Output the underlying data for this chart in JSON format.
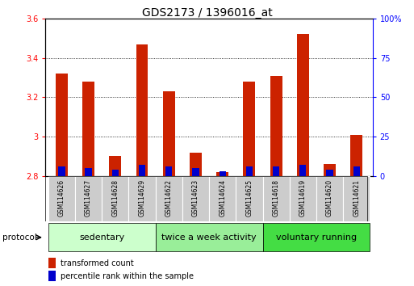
{
  "title": "GDS2173 / 1396016_at",
  "samples": [
    "GSM114626",
    "GSM114627",
    "GSM114628",
    "GSM114629",
    "GSM114622",
    "GSM114623",
    "GSM114624",
    "GSM114625",
    "GSM114618",
    "GSM114619",
    "GSM114620",
    "GSM114621"
  ],
  "transformed_count": [
    3.32,
    3.28,
    2.9,
    3.47,
    3.23,
    2.92,
    2.82,
    3.28,
    3.31,
    3.52,
    2.86,
    3.01
  ],
  "percentile_rank": [
    6,
    5,
    4,
    7,
    6,
    5,
    3,
    6,
    6,
    7,
    4,
    6
  ],
  "base": 2.8,
  "ylim_left": [
    2.8,
    3.6
  ],
  "ylim_right": [
    0,
    100
  ],
  "yticks_left": [
    2.8,
    3.0,
    3.2,
    3.4,
    3.6
  ],
  "ytick_labels_left": [
    "2.8",
    "3",
    "3.2",
    "3.4",
    "3.6"
  ],
  "yticks_right": [
    0,
    25,
    50,
    75,
    100
  ],
  "ytick_labels_right": [
    "0",
    "25",
    "50",
    "75",
    "100%"
  ],
  "groups": [
    {
      "label": "sedentary",
      "start": 0,
      "end": 4,
      "color": "#ccffcc"
    },
    {
      "label": "twice a week activity",
      "start": 4,
      "end": 8,
      "color": "#99ee99"
    },
    {
      "label": "voluntary running",
      "start": 8,
      "end": 12,
      "color": "#44dd44"
    }
  ],
  "bar_color_red": "#cc2200",
  "bar_color_blue": "#0000cc",
  "bar_width": 0.45,
  "blue_bar_width": 0.25,
  "sample_box_color": "#cccccc",
  "protocol_label": "protocol",
  "legend_red_label": "transformed count",
  "legend_blue_label": "percentile rank within the sample",
  "title_fontsize": 10,
  "tick_fontsize": 7,
  "legend_fontsize": 7,
  "group_fontsize": 8
}
